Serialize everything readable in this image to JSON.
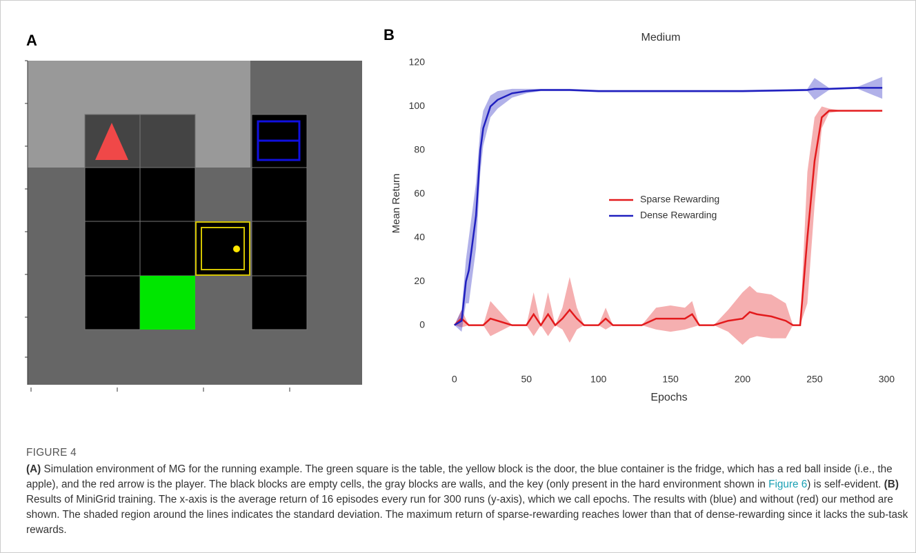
{
  "figure": {
    "panel_a": "A",
    "panel_b": "B",
    "label": "FIGURE 4",
    "caption_a_label": "(A)",
    "caption_a_text": " Simulation environment of MG for the running example. The green square is the table, the yellow block is the door, the blue container is the fridge, which has a red ball inside (i.e., the apple), and the red arrow is the player. The black blocks are empty cells, the gray blocks are walls, and the key (only present in the hard environment shown in ",
    "caption_link": "Figure 6",
    "caption_a_end": ") is self-evident. ",
    "caption_b_label": "(B)",
    "caption_b_text": " Results of MiniGrid training. The x-axis is the average return of 16 episodes every run for 300 runs (y-axis), which we call epochs. The results with (blue) and without (red) our method are shown. The shaded region around the lines indicates the standard deviation. The maximum return of sparse-rewarding reaches lower than that of dense-rewarding since it lacks the sub-task rewards."
  },
  "chart_data": {
    "type": "line",
    "title": "Medium",
    "x_label": "Epochs",
    "y_label": "Mean Return",
    "xlim": [
      -9,
      307
    ],
    "ylim": [
      -14,
      125
    ],
    "xticks": [
      0,
      50,
      100,
      150,
      200,
      250,
      300
    ],
    "yticks": [
      0,
      20,
      40,
      60,
      80,
      100,
      120
    ],
    "grid": false,
    "series": [
      {
        "name": "Sparse Rewarding",
        "color": "#e31a1c",
        "x": [
          0,
          5,
          10,
          20,
          25,
          40,
          50,
          55,
          60,
          65,
          70,
          75,
          80,
          85,
          90,
          100,
          105,
          110,
          130,
          140,
          150,
          160,
          165,
          170,
          180,
          190,
          200,
          205,
          210,
          220,
          230,
          235,
          240,
          245,
          250,
          255,
          260,
          270,
          280,
          297
        ],
        "values": [
          0,
          3,
          0,
          0,
          3,
          0,
          0,
          5,
          0,
          5,
          0,
          3,
          7,
          3,
          0,
          0,
          3,
          0,
          0,
          3,
          3,
          3,
          5,
          0,
          0,
          2,
          3,
          6,
          5,
          4,
          2,
          0,
          0,
          40,
          75,
          95,
          98,
          98,
          98,
          98
        ],
        "std": [
          0,
          4,
          0,
          0,
          8,
          0,
          0,
          10,
          0,
          10,
          0,
          5,
          15,
          5,
          0,
          0,
          5,
          0,
          0,
          5,
          6,
          5,
          6,
          0,
          0,
          5,
          12,
          12,
          10,
          10,
          8,
          0,
          0,
          30,
          20,
          5,
          1,
          0,
          0,
          0
        ]
      },
      {
        "name": "Dense Rewarding",
        "color": "#1f1fbf",
        "x": [
          0,
          5,
          8,
          10,
          12,
          15,
          18,
          20,
          25,
          30,
          40,
          50,
          60,
          80,
          100,
          150,
          200,
          245,
          250,
          260,
          280,
          297
        ],
        "values": [
          0,
          2,
          20,
          25,
          35,
          50,
          80,
          90,
          100,
          103,
          106,
          107,
          107.5,
          107.5,
          107,
          107,
          107,
          107.5,
          108,
          108,
          108.5,
          108.5
        ],
        "std": [
          0,
          5,
          10,
          15,
          15,
          15,
          10,
          8,
          5,
          4,
          2,
          1,
          0.5,
          0.5,
          0.5,
          0.5,
          0.5,
          0.5,
          5,
          0.5,
          0.5,
          5
        ]
      }
    ]
  }
}
